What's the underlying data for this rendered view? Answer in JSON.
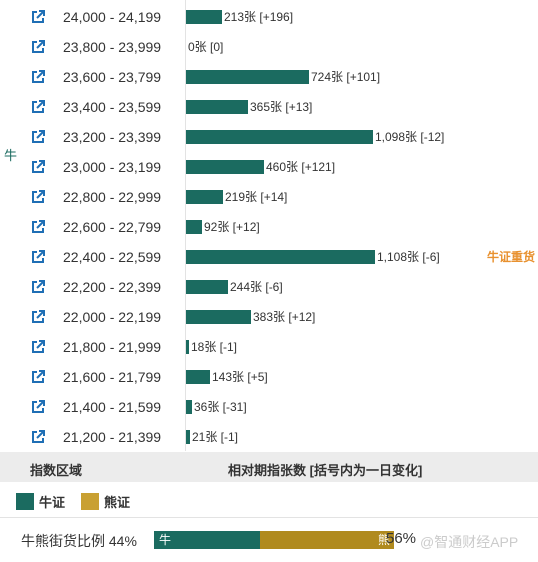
{
  "chart_data": {
    "type": "bar",
    "orientation": "horizontal",
    "categories": [
      "24,000 - 24,199",
      "23,800 - 23,999",
      "23,600 - 23,799",
      "23,400 - 23,599",
      "23,200 - 23,399",
      "23,000 - 23,199",
      "22,800 - 22,999",
      "22,600 - 22,799",
      "22,400 - 22,599",
      "22,200 - 22,399",
      "22,000 - 22,199",
      "21,800 - 21,999",
      "21,600 - 21,799",
      "21,400 - 21,599",
      "21,200 - 21,399"
    ],
    "values": [
      213,
      0,
      724,
      365,
      1098,
      460,
      219,
      92,
      1108,
      244,
      383,
      18,
      143,
      36,
      21
    ],
    "labels": [
      "213张 [+196]",
      "0张 [0]",
      "724张 [+101]",
      "365张 [+13]",
      "1,098张 [-12]",
      "460张 [+121]",
      "219张 [+14]",
      "92张 [+12]",
      "1,108张 [-6]",
      "244张 [-6]",
      "383张 [+12]",
      "18张 [-1]",
      "143张 [+5]",
      "36张 [-31]",
      "21张 [-1]"
    ],
    "xlim": [
      0,
      1108
    ],
    "bar_color": "#1b6b60",
    "side_marker": "牛",
    "heavy_label": "牛证重货",
    "heavy_index": 8,
    "header": {
      "range": "指数区域",
      "count": "相对期指张数 [括号内为一日变化]"
    },
    "legend": [
      {
        "name": "牛证",
        "color": "#1b6b60"
      },
      {
        "name": "熊证",
        "color": "#c9a032"
      }
    ]
  },
  "ratio": {
    "label": "牛熊街货比例",
    "bull_pct_text": "44%",
    "bear_pct_text": "56%",
    "bull_fraction": 0.44,
    "bull_bar_label": "牛",
    "bear_bar_label": "熊",
    "bull_color": "#1b6b60",
    "bear_color": "#b08a1e",
    "watermark": "@智通财经APP"
  },
  "icons": {
    "row_link": "external-link-icon"
  }
}
